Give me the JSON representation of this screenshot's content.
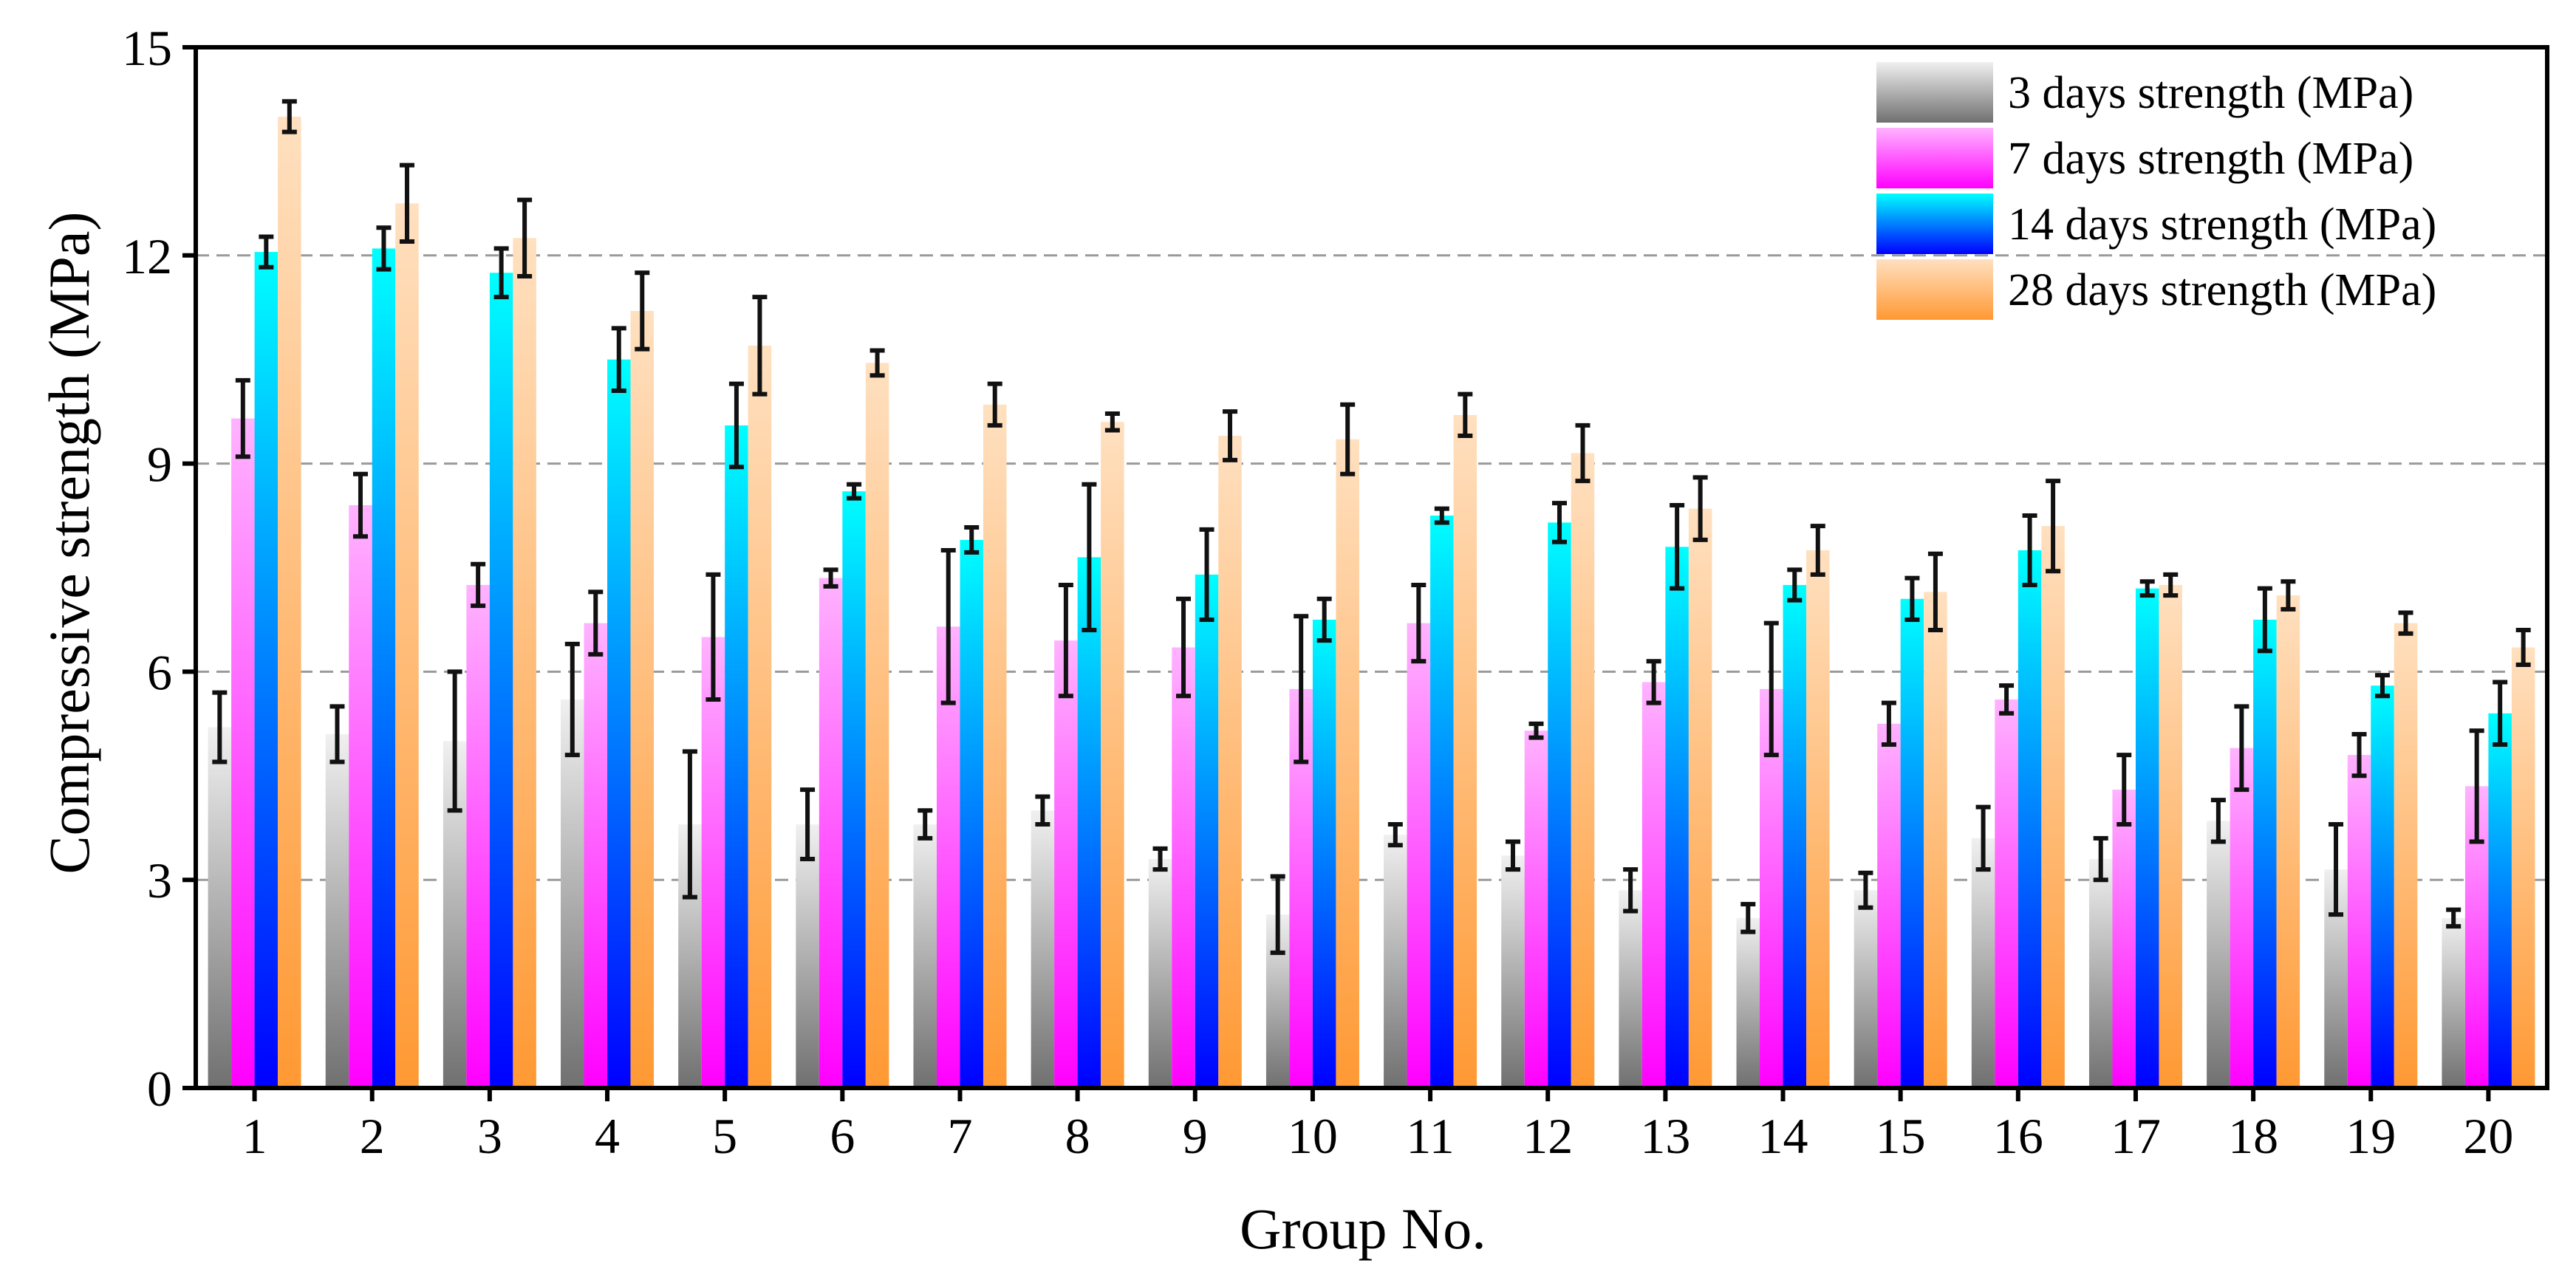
{
  "chart_data": {
    "type": "bar",
    "title": "",
    "xlabel": "Group No.",
    "ylabel": "Compressive strength (MPa)",
    "ylim": [
      0,
      15
    ],
    "yticks": [
      0,
      3,
      6,
      9,
      12,
      15
    ],
    "ytick_labels": [
      "0",
      "3",
      "6",
      "9",
      "12",
      "15"
    ],
    "grid": "horizontal dashed",
    "legend_position": "top-right",
    "categories": [
      "1",
      "2",
      "3",
      "4",
      "5",
      "6",
      "7",
      "8",
      "9",
      "10",
      "11",
      "12",
      "13",
      "14",
      "15",
      "16",
      "17",
      "18",
      "19",
      "20"
    ],
    "series": [
      {
        "name": "3 days strength (MPa)",
        "colors": [
          "#f0f0f0",
          "#707070"
        ],
        "values": [
          5.2,
          5.1,
          5.0,
          5.6,
          3.8,
          3.8,
          3.8,
          4.0,
          3.3,
          2.5,
          3.65,
          3.35,
          2.85,
          2.45,
          2.85,
          3.6,
          3.3,
          3.85,
          3.15,
          2.45
        ],
        "errors": [
          0.5,
          0.4,
          1.0,
          0.8,
          1.05,
          0.5,
          0.2,
          0.2,
          0.15,
          0.55,
          0.15,
          0.2,
          0.3,
          0.2,
          0.25,
          0.45,
          0.3,
          0.3,
          0.65,
          0.12
        ]
      },
      {
        "name": "7 days strength (MPa)",
        "colors": [
          "#ffb3ff",
          "#ff00ff"
        ],
        "values": [
          9.65,
          8.4,
          7.25,
          6.7,
          6.5,
          7.35,
          6.65,
          6.45,
          6.35,
          5.75,
          6.7,
          5.15,
          5.85,
          5.75,
          5.25,
          5.6,
          4.3,
          4.9,
          4.8,
          4.35
        ],
        "errors": [
          0.55,
          0.45,
          0.3,
          0.45,
          0.9,
          0.12,
          1.1,
          0.8,
          0.7,
          1.05,
          0.55,
          0.1,
          0.3,
          0.95,
          0.3,
          0.2,
          0.5,
          0.6,
          0.3,
          0.8
        ]
      },
      {
        "name": "14 days strength (MPa)",
        "colors": [
          "#00ffff",
          "#0000ff"
        ],
        "values": [
          12.05,
          12.1,
          11.75,
          10.5,
          9.55,
          8.6,
          7.9,
          7.65,
          7.4,
          6.75,
          8.25,
          8.15,
          7.8,
          7.25,
          7.05,
          7.75,
          7.2,
          6.75,
          5.8,
          5.4
        ],
        "errors": [
          0.22,
          0.3,
          0.35,
          0.45,
          0.6,
          0.1,
          0.18,
          1.05,
          0.65,
          0.3,
          0.1,
          0.28,
          0.6,
          0.22,
          0.3,
          0.5,
          0.1,
          0.45,
          0.15,
          0.45
        ]
      },
      {
        "name": "28 days strength (MPa)",
        "colors": [
          "#ffe0c0",
          "#ff9933"
        ],
        "values": [
          14.0,
          12.75,
          12.25,
          11.2,
          10.7,
          10.45,
          9.85,
          9.6,
          9.4,
          9.35,
          9.7,
          9.15,
          8.35,
          7.75,
          7.15,
          8.1,
          7.25,
          7.1,
          6.7,
          6.35
        ],
        "errors": [
          0.22,
          0.55,
          0.55,
          0.55,
          0.7,
          0.18,
          0.3,
          0.12,
          0.35,
          0.5,
          0.3,
          0.4,
          0.45,
          0.35,
          0.55,
          0.65,
          0.15,
          0.2,
          0.15,
          0.25
        ]
      }
    ]
  }
}
